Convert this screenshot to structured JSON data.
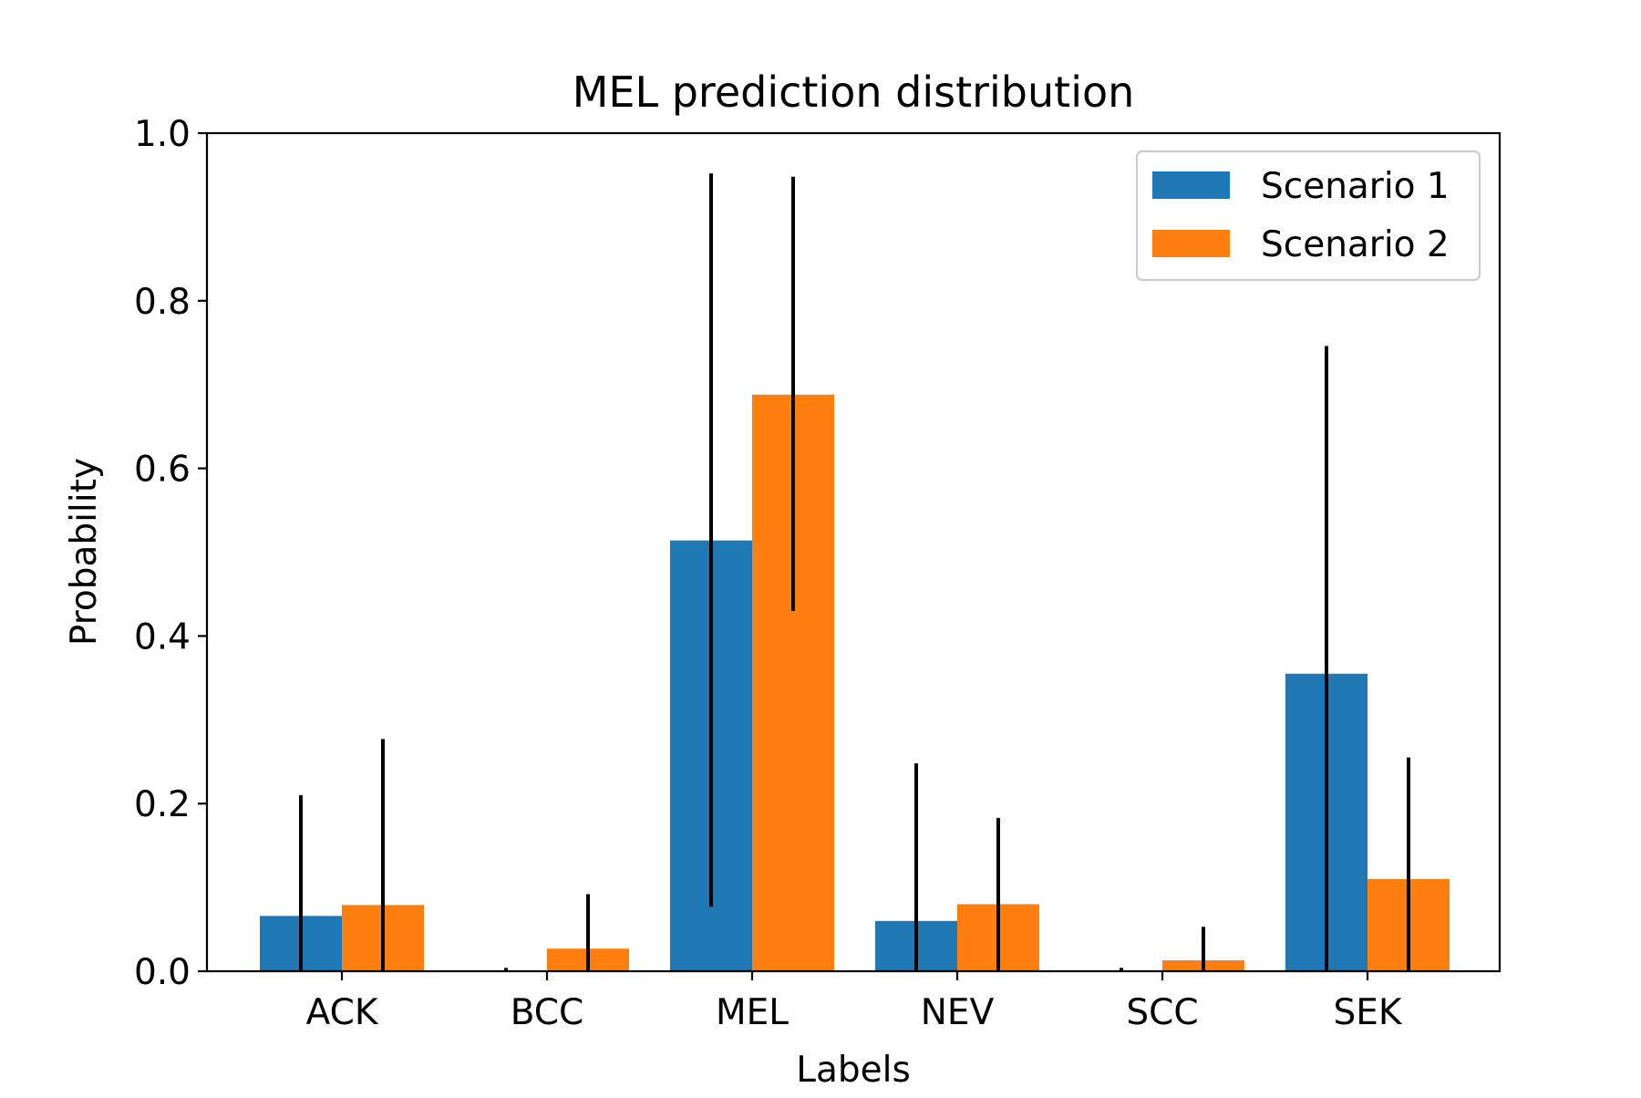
{
  "chart_data": {
    "type": "bar",
    "title": "MEL prediction distribution",
    "xlabel": "Labels",
    "ylabel": "Probability",
    "ylim": [
      0,
      1.0
    ],
    "yticks": [
      0.0,
      0.2,
      0.4,
      0.6,
      0.8,
      1.0
    ],
    "ytick_labels": [
      "0.0",
      "0.2",
      "0.4",
      "0.6",
      "0.8",
      "1.0"
    ],
    "categories": [
      "ACK",
      "BCC",
      "MEL",
      "NEV",
      "SCC",
      "SEK"
    ],
    "grid": false,
    "legend_position": "top-right",
    "series": [
      {
        "name": "Scenario 1",
        "color": "#1f77b4",
        "values": [
          0.066,
          0.001,
          0.514,
          0.06,
          0.001,
          0.355
        ],
        "error_low": [
          0.0,
          0.0,
          0.077,
          0.0,
          0.0,
          0.0
        ],
        "error_high": [
          0.21,
          0.004,
          0.952,
          0.248,
          0.004,
          0.746
        ]
      },
      {
        "name": "Scenario 2",
        "color": "#ff7f0e",
        "values": [
          0.079,
          0.027,
          0.688,
          0.08,
          0.013,
          0.11
        ],
        "error_low": [
          0.0,
          0.0,
          0.43,
          0.0,
          0.0,
          0.0
        ],
        "error_high": [
          0.277,
          0.092,
          0.948,
          0.183,
          0.053,
          0.255
        ]
      }
    ]
  }
}
